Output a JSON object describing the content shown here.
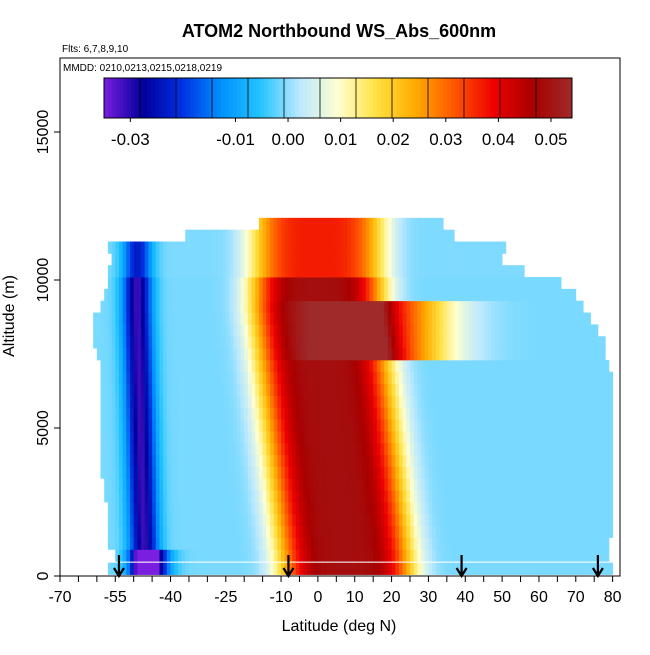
{
  "chart_data": {
    "type": "heatmap",
    "title": "ATOM2 Northbound WS_Abs_600nm",
    "flights_note": "Flts: 6,7,8,9,10",
    "dates_note": "MMDD: 0210,0213,0215,0218,0219",
    "xlabel": "Latitude (deg N)",
    "ylabel": "Altitude (m)",
    "xlim": [
      -70,
      82
    ],
    "ylim": [
      0,
      17500
    ],
    "x_tick_labels": [
      "-70",
      "-55",
      "-40",
      "-25",
      "-10",
      "0",
      "10",
      "20",
      "30",
      "40",
      "50",
      "60",
      "70",
      "80"
    ],
    "x_tick_values": [
      -70,
      -55,
      -40,
      -25,
      -10,
      0,
      10,
      20,
      30,
      40,
      50,
      60,
      70,
      80
    ],
    "y_tick_values": [
      0,
      5000,
      10000,
      15000
    ],
    "y_tick_labels": [
      "0",
      "5000",
      "10000",
      "15000"
    ],
    "colorbar": {
      "range": [
        -0.035,
        0.054
      ],
      "tick_values": [
        -0.03,
        -0.01,
        0.0,
        0.01,
        0.02,
        0.03,
        0.04,
        0.05
      ],
      "tick_labels": [
        "-0.03",
        "-0.01",
        "0.00",
        "0.01",
        "0.02",
        "0.03",
        "0.04",
        "0.05"
      ],
      "colors": [
        "#7a1ee0",
        "#00009c",
        "#0030e0",
        "#0090ff",
        "#22c4ff",
        "#b8e8ff",
        "#ffffd0",
        "#ffe040",
        "#ffaa00",
        "#ff5500",
        "#ee0000",
        "#a80000",
        "#9e2a2a"
      ]
    },
    "profile_markers_latitude": [
      -54,
      -8,
      39,
      76
    ],
    "field": {
      "altitude_levels": [
        250,
        700,
        1100,
        1500,
        1900,
        2300,
        2700,
        3100,
        3500,
        3900,
        4300,
        4700,
        5100,
        5500,
        5900,
        6300,
        6700,
        7100,
        7500,
        7900,
        8300,
        8700,
        9100,
        9500,
        9900,
        10300,
        10700,
        11100,
        11500,
        11900
      ],
      "bounds": [
        [
          -57,
          80
        ],
        [
          -55,
          79
        ],
        [
          -57,
          79
        ],
        [
          -57,
          80
        ],
        [
          -57,
          80
        ],
        [
          -57,
          80
        ],
        [
          -58,
          80
        ],
        [
          -58,
          80
        ],
        [
          -59,
          80
        ],
        [
          -59,
          80
        ],
        [
          -59,
          80
        ],
        [
          -59,
          80
        ],
        [
          -59,
          80
        ],
        [
          -59,
          80
        ],
        [
          -59,
          80
        ],
        [
          -59,
          80
        ],
        [
          -59,
          80
        ],
        [
          -59,
          79
        ],
        [
          -60,
          78
        ],
        [
          -61,
          78
        ],
        [
          -61,
          76
        ],
        [
          -61,
          74
        ],
        [
          -59,
          72
        ],
        [
          -58,
          70
        ],
        [
          -57,
          66
        ],
        [
          -57,
          56
        ],
        [
          -56,
          50
        ],
        [
          -57,
          51
        ],
        [
          -36,
          37
        ],
        [
          -16,
          34
        ]
      ],
      "features": [
        {
          "name": "deep-blue band",
          "lat_low": -47,
          "lat_high": -49,
          "half_width": 4,
          "value": -0.03
        },
        {
          "name": "red core",
          "lat_low": 8,
          "lat_high": 0,
          "half_width": 18,
          "value": 0.05
        },
        {
          "name": "upper red tongue",
          "lat_center": 20,
          "alt_low": 7500,
          "alt_high": 9100,
          "value": 0.045
        },
        {
          "name": "low-level dark blue",
          "lat_center": -45,
          "altitude": 600,
          "value": -0.034
        }
      ],
      "background_value": -0.001
    }
  }
}
